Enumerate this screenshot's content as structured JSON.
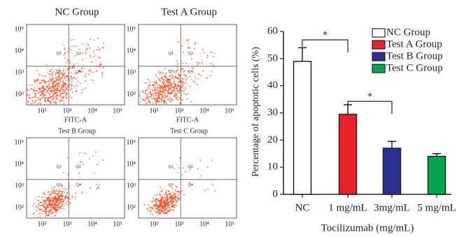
{
  "flow_cytometry": {
    "panels": [
      {
        "title": "NC Group",
        "x_label": "FITC-A"
      },
      {
        "title": "Test A Group",
        "x_label": "FITC-A"
      },
      {
        "title": "Test B Group"
      },
      {
        "title": "Test C Group"
      }
    ],
    "x_ticks": [
      "10²",
      "10³",
      "10⁴",
      "10⁵"
    ],
    "y_ticks": [
      "10²",
      "10³",
      "10⁴",
      "10⁵"
    ],
    "quadrants": [
      "Q1",
      "Q2",
      "Q3",
      "Q4"
    ]
  },
  "chart_data": [
    {
      "type": "bar",
      "categories": [
        "NC",
        "1 mg/mL",
        "3mg/mL",
        "5 mg/mL"
      ],
      "series": [
        {
          "name": "NC Group",
          "color": "#ffffff",
          "values": [
            49,
            null,
            null,
            null
          ],
          "errors": [
            5,
            null,
            null,
            null
          ]
        },
        {
          "name": "Test A Group",
          "color": "#e8222a",
          "values": [
            null,
            29.5,
            null,
            null
          ],
          "errors": [
            null,
            3.5,
            null,
            null
          ]
        },
        {
          "name": "Test B Group",
          "color": "#2e3192",
          "values": [
            null,
            null,
            17,
            null
          ],
          "errors": [
            null,
            null,
            2.5,
            null
          ]
        },
        {
          "name": "Test C Group",
          "color": "#00a651",
          "values": [
            null,
            null,
            null,
            14
          ],
          "errors": [
            null,
            null,
            null,
            1
          ]
        }
      ],
      "y_label": "Percentage of apoptotic cells (%)",
      "x_label": "Tocilizumab (mg/mL)",
      "ylim": [
        0,
        60
      ],
      "yticks": [
        0,
        10,
        20,
        30,
        40,
        50,
        60
      ],
      "annotations": [
        {
          "text": "*"
        },
        {
          "text": "*"
        }
      ],
      "legend": "upper right",
      "grid": false
    }
  ]
}
